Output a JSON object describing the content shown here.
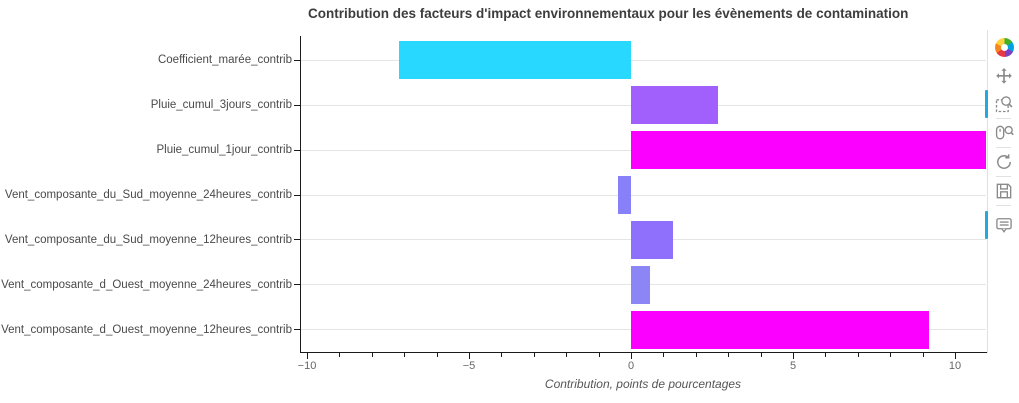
{
  "title": "Contribution des facteurs d'impact environnementaux pour les évènements de contamination",
  "chart_data": {
    "type": "bar",
    "orientation": "horizontal",
    "title": "Contribution des facteurs d'impact environnementaux pour les évènements de contamination",
    "xlabel": "Contribution, points de pourcentages",
    "ylabel": "",
    "categories": [
      "Coefficient_marée_contrib",
      "Pluie_cumul_3jours_contrib",
      "Pluie_cumul_1jour_contrib",
      "Vent_composante_du_Sud_moyenne_24heures_contrib",
      "Vent_composante_du_Sud_moyenne_12heures_contrib",
      "Vent_composante_d_Ouest_moyenne_24heures_contrib",
      "Vent_composante_d_Ouest_moyenne_12heures_contrib"
    ],
    "values": [
      -7.15,
      2.7,
      11.0,
      -0.4,
      1.3,
      0.6,
      9.2
    ],
    "bar_colors": [
      "#29D8FF",
      "#A160FB",
      "#FB00FE",
      "#8880F8",
      "#8E70FC",
      "#8B85F6",
      "#FB00FE"
    ],
    "xlim": [
      -10.2,
      10.95
    ],
    "x_major_ticks": [
      -10,
      -5,
      0,
      5,
      10
    ],
    "x_major_tick_labels": [
      "−10",
      "−5",
      "0",
      "5",
      "10"
    ],
    "x_minor_tick_step": 1,
    "grid": "horizontal-only",
    "legend": "none",
    "notes": "third bar clipped at right plot edge"
  },
  "toolbar": {
    "tools": [
      {
        "name": "bokeh-logo",
        "active": false
      },
      {
        "name": "pan",
        "active": false
      },
      {
        "name": "box-zoom",
        "active": true
      },
      {
        "name": "wheel-zoom",
        "active": false
      },
      {
        "name": "reset",
        "active": false
      },
      {
        "name": "save",
        "active": false
      },
      {
        "name": "hover",
        "active": true
      }
    ],
    "active_color": "#26a7de"
  }
}
